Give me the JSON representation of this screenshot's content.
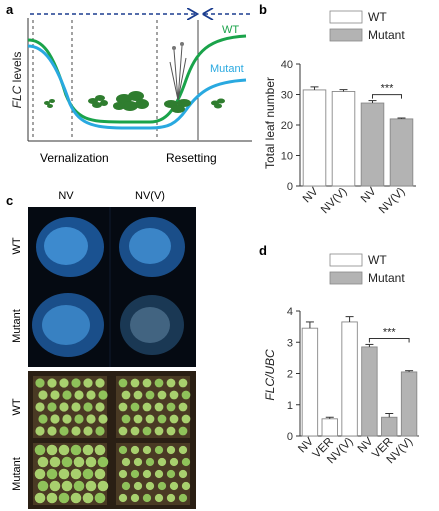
{
  "panels": {
    "a": {
      "letter": "a",
      "ylabel_italic": "FLC",
      "ylabel_rest": " levels",
      "wt_label": "WT",
      "mutant_label": "Mutant",
      "phase_left": "Vernalization",
      "phase_right": "Resetting",
      "colors": {
        "wt": "#1aa34a",
        "mutant": "#29a9e0",
        "arrow": "#1b3d8f"
      }
    },
    "b": {
      "letter": "b",
      "sig": "***",
      "chart_data": {
        "type": "bar",
        "ylabel": "Total leaf number",
        "ylim": [
          0,
          40
        ],
        "yticks": [
          0,
          10,
          20,
          30,
          40
        ],
        "categories": [
          "NV",
          "NV(V)",
          "NV",
          "NV(V)"
        ],
        "groups": [
          "WT",
          "WT",
          "Mutant",
          "Mutant"
        ],
        "values": [
          31.5,
          31,
          27.2,
          22
        ],
        "errors": [
          1.0,
          0.6,
          0.8,
          0.3
        ],
        "legend": [
          {
            "name": "WT",
            "color": "#ffffff"
          },
          {
            "name": "Mutant",
            "color": "#b3b3b3"
          }
        ]
      }
    },
    "c": {
      "letter": "c",
      "col_labels": [
        "NV",
        "NV(V)"
      ],
      "row_labels_top": [
        "WT",
        "Mutant"
      ],
      "row_labels_bottom": [
        "WT",
        "Mutant"
      ]
    },
    "d": {
      "letter": "d",
      "sig": "***",
      "chart_data": {
        "type": "bar",
        "ylabel_italic": "FLC/UBC",
        "ylim": [
          0,
          4
        ],
        "yticks": [
          0,
          1,
          2,
          3,
          4
        ],
        "categories": [
          "NV",
          "VER",
          "NV(V)",
          "NV",
          "VER",
          "NV(V)"
        ],
        "groups": [
          "WT",
          "WT",
          "WT",
          "Mutant",
          "Mutant",
          "Mutant"
        ],
        "values": [
          3.45,
          0.55,
          3.65,
          2.85,
          0.6,
          2.05
        ],
        "errors": [
          0.2,
          0.05,
          0.17,
          0.08,
          0.12,
          0.04
        ],
        "legend": [
          {
            "name": "WT",
            "color": "#ffffff"
          },
          {
            "name": "Mutant",
            "color": "#b3b3b3"
          }
        ]
      }
    }
  }
}
